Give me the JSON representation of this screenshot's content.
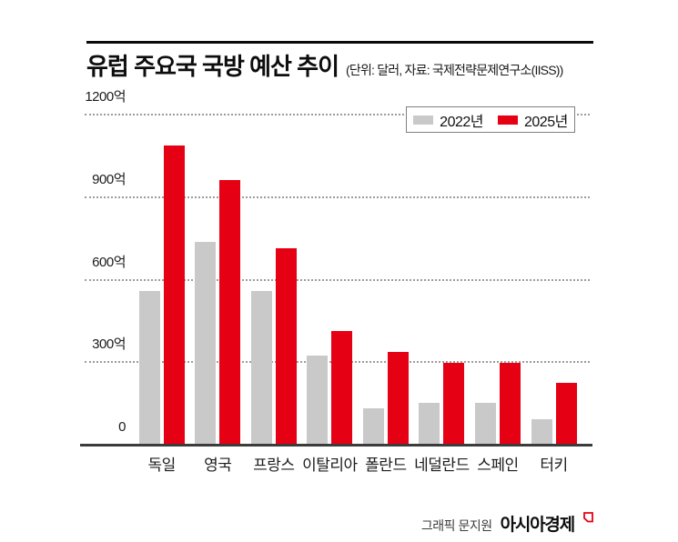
{
  "header": {
    "title": "유럽 주요국 국방 예산 추이",
    "subtitle": "(단위: 달러, 자료: 국제전략문제연구소(IISS))"
  },
  "legend": {
    "items": [
      {
        "label": "2022년",
        "color": "#c9c9c9"
      },
      {
        "label": "2025년",
        "color": "#e60013"
      }
    ]
  },
  "footer": {
    "credit": "그래픽 문지원",
    "brand": "아시아경제"
  },
  "colors": {
    "bar_2022": "#c9c9c9",
    "bar_2025": "#e60013",
    "axis": "#3c3c3c",
    "grid": "#9c9c9c",
    "accent_red": "#e60013"
  },
  "chart_data": {
    "type": "bar",
    "title": "유럽 주요국 국방 예산 추이",
    "unit_note": "단위: 달러",
    "source": "국제전략문제연구소(IISS)",
    "categories": [
      "독일",
      "영국",
      "프랑스",
      "이탈리아",
      "폴란드",
      "네덜란드",
      "스페인",
      "터키"
    ],
    "series": [
      {
        "name": "2022년",
        "color": "#c9c9c9",
        "values": [
          555,
          735,
          555,
          320,
          130,
          150,
          150,
          90
        ]
      },
      {
        "name": "2025년",
        "color": "#e60013",
        "values": [
          1085,
          960,
          710,
          410,
          335,
          295,
          295,
          220
        ]
      }
    ],
    "yticks": [
      {
        "value": 0,
        "label": "0"
      },
      {
        "value": 300,
        "label": "300억"
      },
      {
        "value": 600,
        "label": "600억"
      },
      {
        "value": 900,
        "label": "900억"
      },
      {
        "value": 1200,
        "label": "1200억"
      }
    ],
    "ylim": [
      0,
      1200
    ],
    "grid": "horizontal-dotted",
    "legend_position": "top-right"
  }
}
